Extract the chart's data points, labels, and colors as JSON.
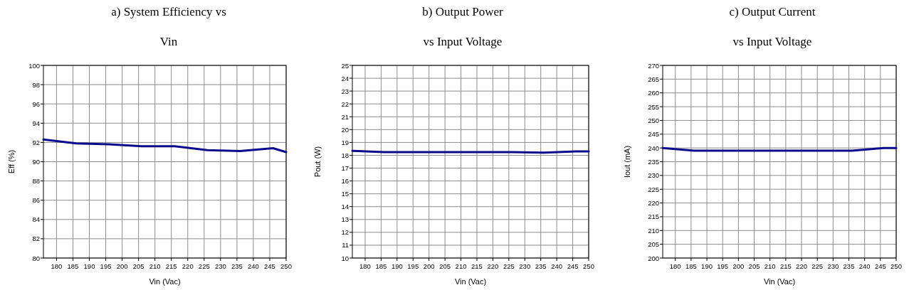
{
  "chart_data": [
    {
      "type": "line",
      "title": "a) System Efficiency vs\nVin",
      "xlabel": "Vin (Vac)",
      "ylabel": "Eff (%)",
      "x": [
        176,
        186,
        196,
        206,
        216,
        226,
        236,
        246,
        250
      ],
      "xlim": [
        176,
        250
      ],
      "xticks": [
        180,
        185,
        190,
        195,
        200,
        205,
        210,
        215,
        220,
        225,
        230,
        235,
        240,
        245,
        250
      ],
      "ylim": [
        80,
        100
      ],
      "yticks": [
        80,
        82,
        84,
        86,
        88,
        90,
        92,
        94,
        96,
        98,
        100
      ],
      "grid": true,
      "series": [
        {
          "color": "#0a0a8c",
          "values": [
            92.3,
            91.9,
            91.8,
            91.6,
            91.6,
            91.2,
            91.1,
            91.4,
            91.0
          ]
        }
      ]
    },
    {
      "type": "line",
      "title": "b) Output Power\nvs Input Voltage",
      "xlabel": "Vin (Vac)",
      "ylabel": "Pout (W)",
      "x": [
        176,
        186,
        196,
        206,
        216,
        226,
        236,
        246,
        250
      ],
      "xlim": [
        176,
        250
      ],
      "xticks": [
        180,
        185,
        190,
        195,
        200,
        205,
        210,
        215,
        220,
        225,
        230,
        235,
        240,
        245,
        250
      ],
      "ylim": [
        10,
        25
      ],
      "yticks": [
        10,
        11,
        12,
        13,
        14,
        15,
        16,
        17,
        18,
        19,
        20,
        21,
        22,
        23,
        24,
        25
      ],
      "grid": true,
      "series": [
        {
          "color": "#0a0a8c",
          "values": [
            18.35,
            18.25,
            18.25,
            18.25,
            18.25,
            18.25,
            18.2,
            18.3,
            18.3
          ]
        }
      ]
    },
    {
      "type": "line",
      "title": "c) Output Current\nvs Input Voltage",
      "xlabel": "Vin (Vac)",
      "ylabel": "Iout (mA)",
      "x": [
        176,
        186,
        196,
        206,
        216,
        226,
        236,
        246,
        250
      ],
      "xlim": [
        176,
        250
      ],
      "xticks": [
        180,
        185,
        190,
        195,
        200,
        205,
        210,
        215,
        220,
        225,
        230,
        235,
        240,
        245,
        250
      ],
      "ylim": [
        200,
        270
      ],
      "yticks": [
        200,
        205,
        210,
        215,
        220,
        225,
        230,
        235,
        240,
        245,
        250,
        255,
        260,
        265,
        270
      ],
      "grid": true,
      "series": [
        {
          "color": "#0a0a8c",
          "values": [
            240,
            239,
            239,
            239,
            239,
            239,
            239,
            240,
            240
          ]
        }
      ]
    }
  ]
}
